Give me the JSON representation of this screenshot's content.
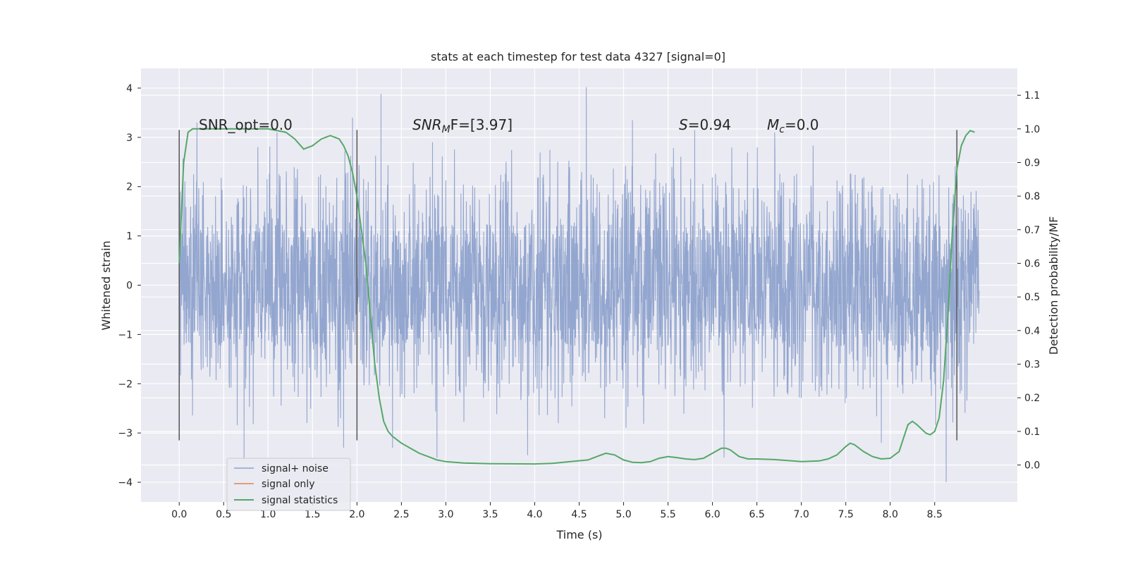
{
  "chart_data": {
    "type": "line",
    "title": "stats at each timestep for test data 4327 [signal=0]",
    "xlabel": "Time (s)",
    "ylabel": "Whitened strain",
    "y2label": "Detection probability/MF",
    "xlim": [
      -0.43,
      9.43
    ],
    "ylim": [
      -4.4,
      4.4
    ],
    "y2lim": [
      -0.11,
      1.18
    ],
    "xticks": [
      0.0,
      0.5,
      1.0,
      1.5,
      2.0,
      2.5,
      3.0,
      3.5,
      4.0,
      4.5,
      5.0,
      5.5,
      6.0,
      6.5,
      7.0,
      7.5,
      8.0,
      8.5
    ],
    "xtick_labels": [
      "0.0",
      "0.5",
      "1.0",
      "1.5",
      "2.0",
      "2.5",
      "3.0",
      "3.5",
      "4.0",
      "4.5",
      "5.0",
      "5.5",
      "6.0",
      "6.5",
      "7.0",
      "7.5",
      "8.0",
      "8.5"
    ],
    "yticks": [
      -4,
      -3,
      -2,
      -1,
      0,
      1,
      2,
      3,
      4
    ],
    "ytick_labels": [
      "−4",
      "−3",
      "−2",
      "−1",
      "0",
      "1",
      "2",
      "3",
      "4"
    ],
    "y2ticks": [
      0.0,
      0.1,
      0.2,
      0.3,
      0.4,
      0.5,
      0.6,
      0.7,
      0.8,
      0.9,
      1.0,
      1.1
    ],
    "y2tick_labels": [
      "0.0",
      "0.1",
      "0.2",
      "0.3",
      "0.4",
      "0.5",
      "0.6",
      "0.7",
      "0.8",
      "0.9",
      "1.0",
      "1.1"
    ],
    "grid": true,
    "legend_position": "lower-left",
    "annotations": {
      "snr_opt": "SNR_opt=0.0",
      "snr_mf_prefix": "SNR",
      "snr_mf_sub": "M",
      "snr_mf_suffix": "F=[3.97]",
      "s_var": "S",
      "s_val": "=0.94",
      "mc_var": "M",
      "mc_sub": "c",
      "mc_val": "=0.0"
    },
    "vertical_lines": [
      {
        "x": 0.0,
        "ymin": -3.15,
        "ymax": 3.15
      },
      {
        "x": 2.0,
        "ymin": -3.15,
        "ymax": 3.15
      },
      {
        "x": 8.75,
        "ymin": -3.15,
        "ymax": 3.15
      }
    ],
    "noise_series": {
      "name": "signal+ noise",
      "color": "#8ea2cc",
      "x_start": 0.0,
      "x_end": 9.0,
      "dense_band": [
        -1.25,
        1.25
      ],
      "upper_envelope_typical": 2.3,
      "lower_envelope_typical": -2.3,
      "peaks": [
        {
          "x": 0.2,
          "y": 3.3
        },
        {
          "x": 1.1,
          "y": 3.1
        },
        {
          "x": 1.95,
          "y": 3.4
        },
        {
          "x": 2.27,
          "y": 3.88
        },
        {
          "x": 2.85,
          "y": 2.9
        },
        {
          "x": 4.58,
          "y": 4.02
        },
        {
          "x": 5.1,
          "y": 3.35
        },
        {
          "x": 5.8,
          "y": 3.15
        },
        {
          "x": 6.7,
          "y": 3.1
        },
        {
          "x": 0.73,
          "y": -3.55
        },
        {
          "x": 2.9,
          "y": -3.5
        },
        {
          "x": 3.92,
          "y": -3.45
        },
        {
          "x": 6.13,
          "y": -3.5
        },
        {
          "x": 8.63,
          "y": -4.0
        },
        {
          "x": 2.4,
          "y": -3.3
        },
        {
          "x": 1.85,
          "y": -3.3
        },
        {
          "x": 7.9,
          "y": -3.2
        }
      ]
    },
    "series": [
      {
        "name": "signal only",
        "color": "#dd8452",
        "x": [],
        "y": []
      },
      {
        "name": "signal statistics",
        "color": "#55a868",
        "axis": "right",
        "x": [
          0.0,
          0.05,
          0.1,
          0.15,
          0.2,
          0.4,
          0.6,
          0.8,
          1.0,
          1.2,
          1.3,
          1.4,
          1.5,
          1.6,
          1.7,
          1.8,
          1.85,
          1.9,
          1.95,
          2.0,
          2.1,
          2.15,
          2.2,
          2.25,
          2.3,
          2.35,
          2.4,
          2.45,
          2.5,
          2.6,
          2.7,
          2.8,
          2.9,
          3.0,
          3.2,
          3.5,
          4.0,
          4.2,
          4.4,
          4.6,
          4.7,
          4.8,
          4.9,
          5.0,
          5.1,
          5.2,
          5.3,
          5.4,
          5.5,
          5.6,
          5.7,
          5.8,
          5.9,
          6.0,
          6.1,
          6.15,
          6.2,
          6.3,
          6.4,
          6.5,
          6.7,
          6.9,
          7.0,
          7.2,
          7.3,
          7.4,
          7.5,
          7.55,
          7.6,
          7.7,
          7.8,
          7.9,
          8.0,
          8.1,
          8.2,
          8.25,
          8.3,
          8.4,
          8.45,
          8.5,
          8.55,
          8.6,
          8.65,
          8.7,
          8.75,
          8.8,
          8.85,
          8.9,
          8.95
        ],
        "y": [
          0.6,
          0.9,
          0.99,
          1.0,
          1.0,
          1.0,
          1.0,
          1.0,
          1.0,
          0.99,
          0.97,
          0.94,
          0.95,
          0.97,
          0.98,
          0.97,
          0.95,
          0.92,
          0.87,
          0.8,
          0.6,
          0.45,
          0.3,
          0.2,
          0.13,
          0.1,
          0.085,
          0.075,
          0.065,
          0.05,
          0.035,
          0.025,
          0.015,
          0.01,
          0.006,
          0.004,
          0.003,
          0.005,
          0.01,
          0.015,
          0.025,
          0.035,
          0.03,
          0.015,
          0.008,
          0.007,
          0.01,
          0.02,
          0.025,
          0.022,
          0.018,
          0.016,
          0.02,
          0.035,
          0.05,
          0.05,
          0.045,
          0.025,
          0.018,
          0.018,
          0.016,
          0.012,
          0.01,
          0.012,
          0.018,
          0.03,
          0.055,
          0.065,
          0.06,
          0.04,
          0.025,
          0.018,
          0.02,
          0.04,
          0.12,
          0.13,
          0.12,
          0.095,
          0.09,
          0.1,
          0.14,
          0.25,
          0.45,
          0.7,
          0.88,
          0.95,
          0.98,
          0.995,
          0.99
        ]
      }
    ]
  }
}
